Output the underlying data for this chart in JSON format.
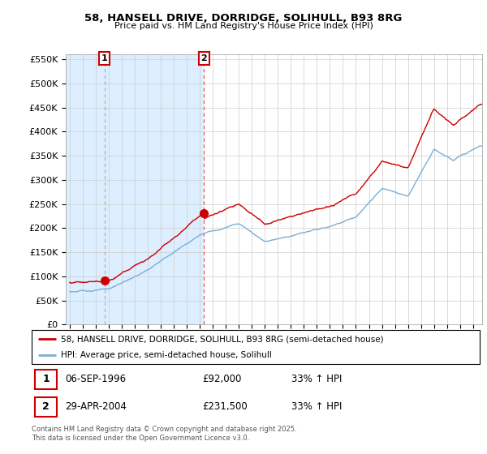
{
  "title1": "58, HANSELL DRIVE, DORRIDGE, SOLIHULL, B93 8RG",
  "title2": "Price paid vs. HM Land Registry's House Price Index (HPI)",
  "ylim": [
    0,
    560000
  ],
  "yticks": [
    0,
    50000,
    100000,
    150000,
    200000,
    250000,
    300000,
    350000,
    400000,
    450000,
    500000,
    550000
  ],
  "p1_x": 1996.68,
  "p1_price": 92000,
  "p2_x": 2004.33,
  "p2_price": 231500,
  "xmin": 1993.7,
  "xmax": 2025.7,
  "xticks_start": 1994,
  "xticks_end": 2026,
  "legend_line1": "58, HANSELL DRIVE, DORRIDGE, SOLIHULL, B93 8RG (semi-detached house)",
  "legend_line2": "HPI: Average price, semi-detached house, Solihull",
  "footnote": "Contains HM Land Registry data © Crown copyright and database right 2025.\nThis data is licensed under the Open Government Licence v3.0.",
  "line_color_red": "#cc0000",
  "line_color_blue": "#7bafd4",
  "bg_span_color": "#ddeeff",
  "grid_color": "#cccccc"
}
